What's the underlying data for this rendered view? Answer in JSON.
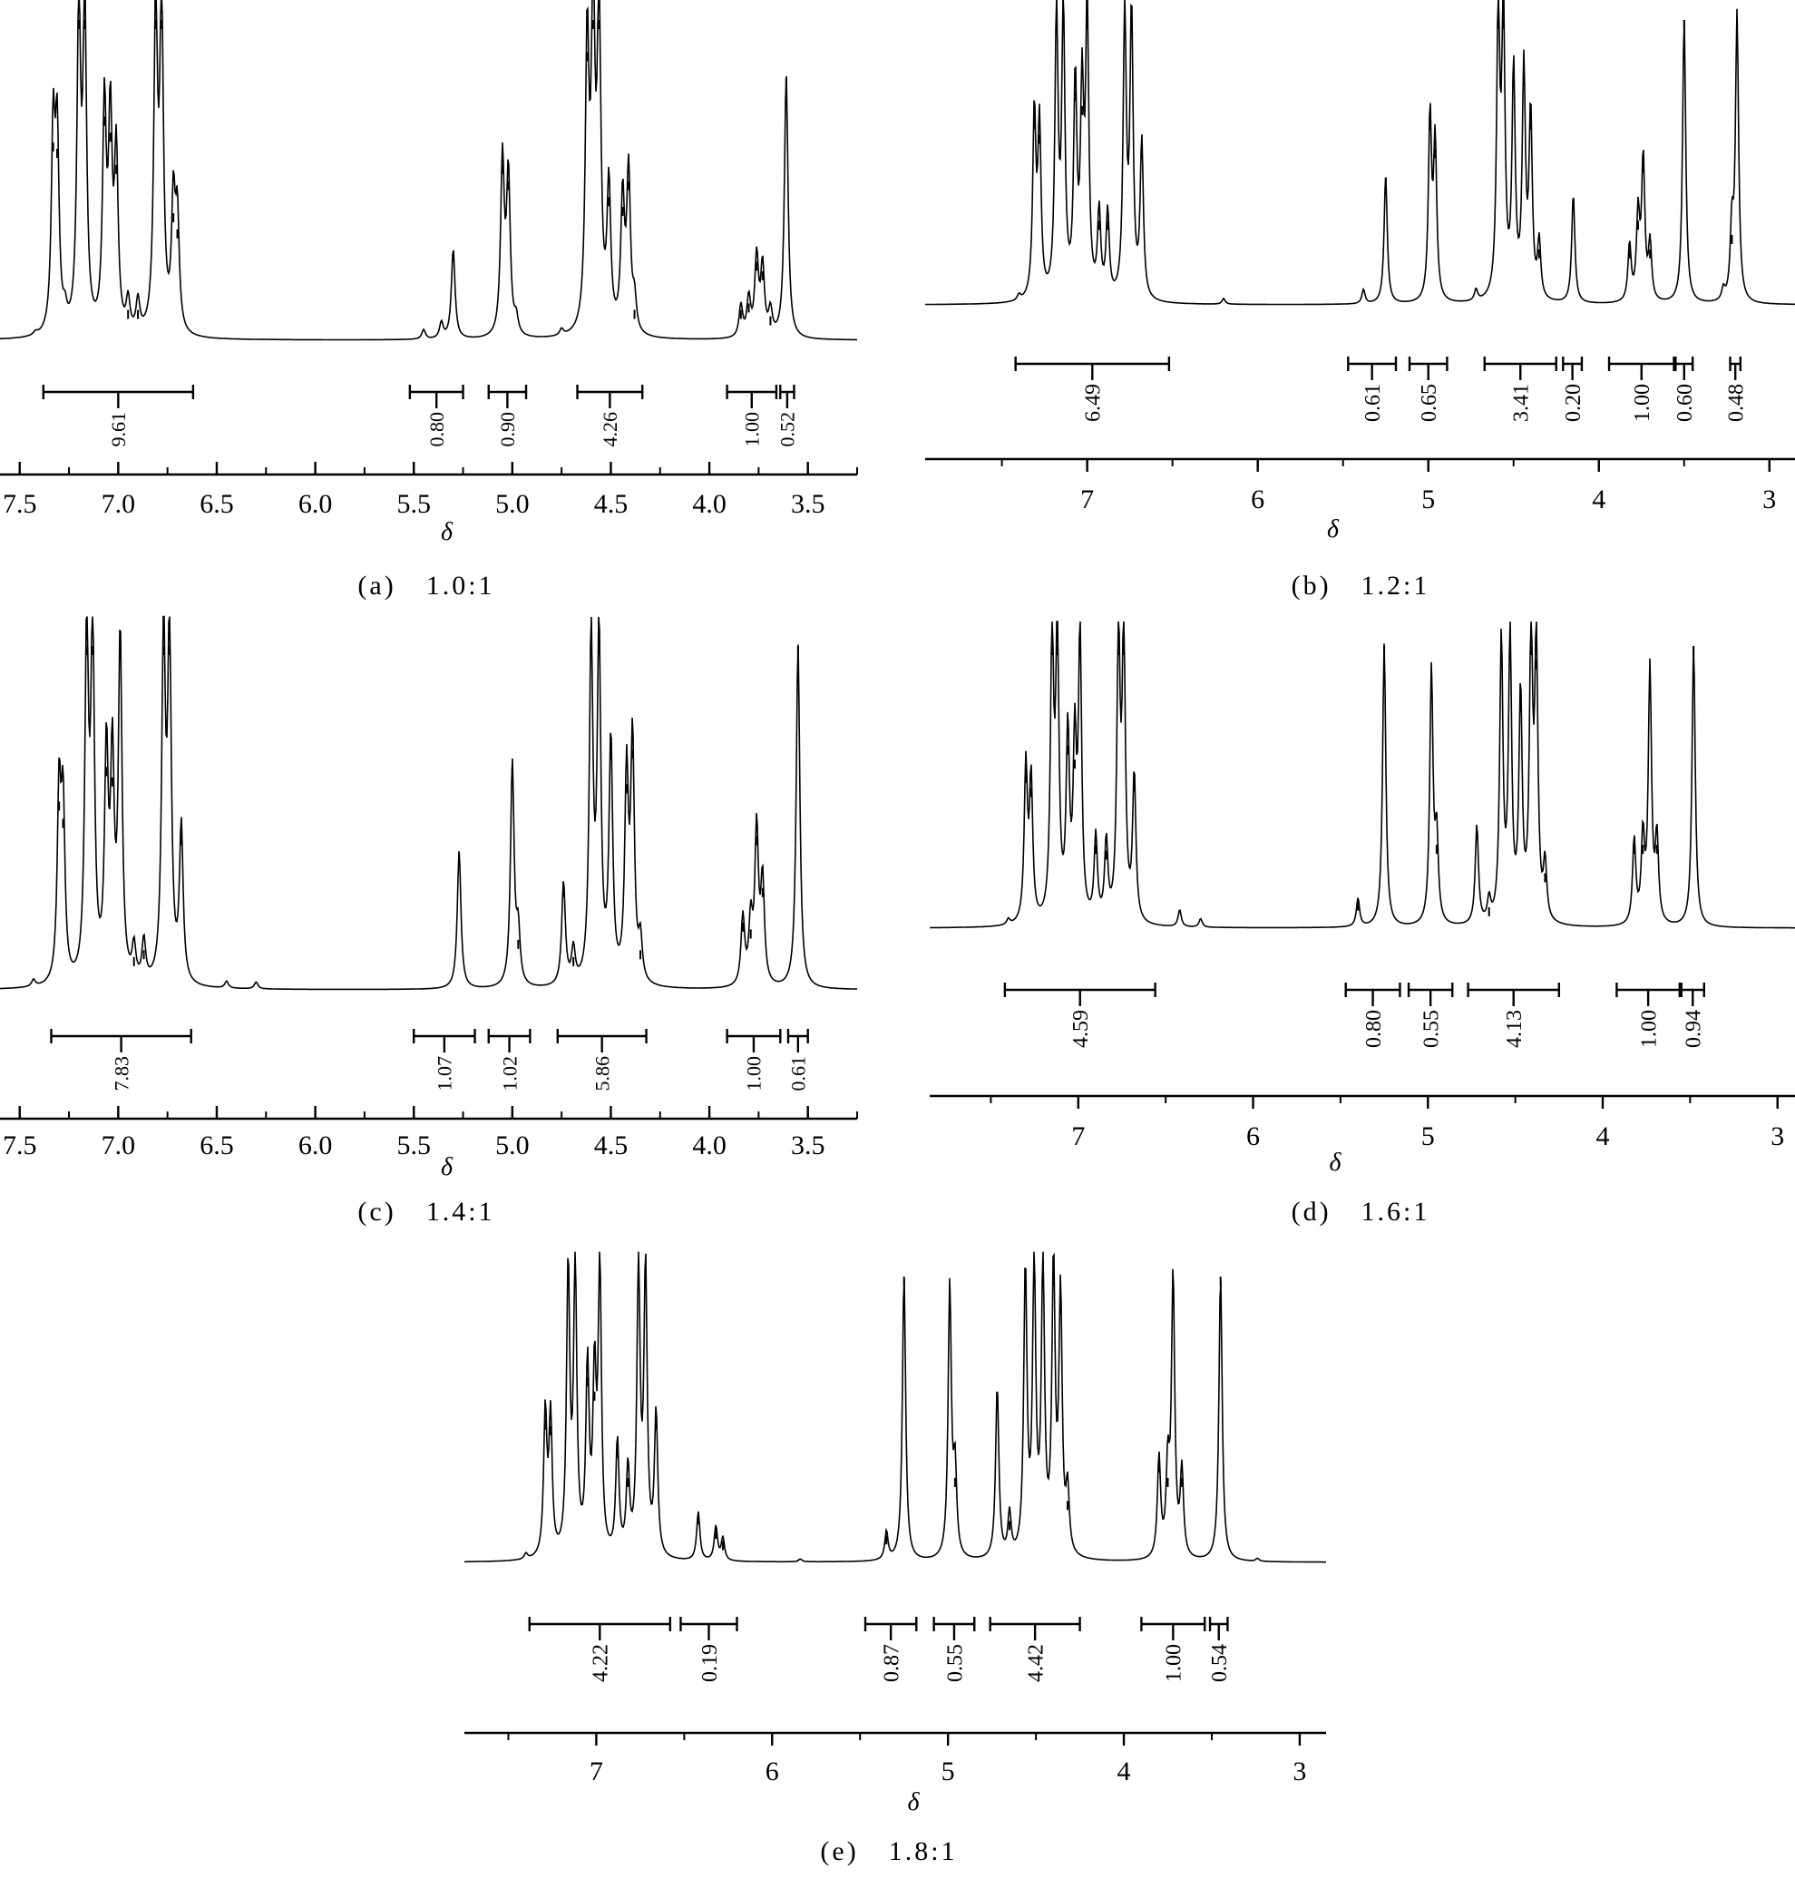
{
  "figure": {
    "panels_text": "NMR spectra panels (a)-(e)"
  },
  "chart_data": [
    {
      "type": "line",
      "id": "a",
      "caption": "(a)　1.0:1",
      "xlabel": "δ",
      "xlim": [
        7.6,
        3.25
      ],
      "reverse_x": true,
      "ticks": [
        7.5,
        7.0,
        6.5,
        6.0,
        5.5,
        5.0,
        4.5,
        4.0,
        3.5
      ],
      "tick_labels": [
        "7.5",
        "7.0",
        "6.5",
        "6.0",
        "5.5",
        "5.0",
        "4.5",
        "4.0",
        "3.5"
      ],
      "integrals": [
        {
          "from": 7.38,
          "to": 6.62,
          "value": "9.61"
        },
        {
          "from": 5.52,
          "to": 5.25,
          "value": "0.80"
        },
        {
          "from": 5.12,
          "to": 4.93,
          "value": "0.90"
        },
        {
          "from": 4.67,
          "to": 4.34,
          "value": "4.26"
        },
        {
          "from": 3.91,
          "to": 3.66,
          "value": "1.00"
        },
        {
          "from": 3.64,
          "to": 3.57,
          "value": "0.52"
        }
      ],
      "peaks": [
        {
          "x": 7.42,
          "h": 0.01
        },
        {
          "x": 7.33,
          "h": 0.62
        },
        {
          "x": 7.31,
          "h": 0.6
        },
        {
          "x": 7.27,
          "h": 0.05
        },
        {
          "x": 7.2,
          "h": 1.0
        },
        {
          "x": 7.17,
          "h": 1.0
        },
        {
          "x": 7.07,
          "h": 0.7
        },
        {
          "x": 7.04,
          "h": 0.65
        },
        {
          "x": 7.01,
          "h": 0.55
        },
        {
          "x": 6.95,
          "h": 0.1
        },
        {
          "x": 6.9,
          "h": 0.1
        },
        {
          "x": 6.81,
          "h": 1.0
        },
        {
          "x": 6.78,
          "h": 1.0
        },
        {
          "x": 6.72,
          "h": 0.4
        },
        {
          "x": 6.7,
          "h": 0.35
        },
        {
          "x": 5.45,
          "h": 0.03
        },
        {
          "x": 5.36,
          "h": 0.05
        },
        {
          "x": 5.3,
          "h": 0.28
        },
        {
          "x": 5.05,
          "h": 0.55
        },
        {
          "x": 5.02,
          "h": 0.5
        },
        {
          "x": 4.98,
          "h": 0.05
        },
        {
          "x": 4.75,
          "h": 0.02
        },
        {
          "x": 4.62,
          "h": 0.9
        },
        {
          "x": 4.59,
          "h": 1.0
        },
        {
          "x": 4.56,
          "h": 1.0
        },
        {
          "x": 4.51,
          "h": 0.45
        },
        {
          "x": 4.44,
          "h": 0.42
        },
        {
          "x": 4.41,
          "h": 0.5
        },
        {
          "x": 4.38,
          "h": 0.1
        },
        {
          "x": 3.84,
          "h": 0.1
        },
        {
          "x": 3.8,
          "h": 0.12
        },
        {
          "x": 3.76,
          "h": 0.25
        },
        {
          "x": 3.73,
          "h": 0.22
        },
        {
          "x": 3.69,
          "h": 0.08
        },
        {
          "x": 3.61,
          "h": 0.82
        }
      ]
    },
    {
      "type": "line",
      "id": "b",
      "caption": "(b)　1.2:1",
      "xlabel": "δ",
      "xlim": [
        7.95,
        2.85
      ],
      "reverse_x": true,
      "ticks": [
        7,
        6,
        5,
        4,
        3
      ],
      "tick_labels": [
        "7",
        "6",
        "5",
        "4",
        "3"
      ],
      "integrals": [
        {
          "from": 7.42,
          "to": 6.52,
          "value": "6.49"
        },
        {
          "from": 5.47,
          "to": 5.19,
          "value": "0.61"
        },
        {
          "from": 5.11,
          "to": 4.89,
          "value": "0.65"
        },
        {
          "from": 4.67,
          "to": 4.25,
          "value": "3.41"
        },
        {
          "from": 4.21,
          "to": 4.1,
          "value": "0.20"
        },
        {
          "from": 3.94,
          "to": 3.56,
          "value": "1.00"
        },
        {
          "from": 3.55,
          "to": 3.45,
          "value": "0.60"
        },
        {
          "from": 3.23,
          "to": 3.17,
          "value": "0.48"
        }
      ],
      "peaks": [
        {
          "x": 7.4,
          "h": 0.02
        },
        {
          "x": 7.31,
          "h": 0.65
        },
        {
          "x": 7.28,
          "h": 0.6
        },
        {
          "x": 7.18,
          "h": 1.0
        },
        {
          "x": 7.14,
          "h": 1.0
        },
        {
          "x": 7.07,
          "h": 0.75
        },
        {
          "x": 7.03,
          "h": 0.7
        },
        {
          "x": 7.0,
          "h": 1.0
        },
        {
          "x": 6.93,
          "h": 0.3
        },
        {
          "x": 6.88,
          "h": 0.3
        },
        {
          "x": 6.78,
          "h": 1.0
        },
        {
          "x": 6.74,
          "h": 1.0
        },
        {
          "x": 6.68,
          "h": 0.55
        },
        {
          "x": 6.2,
          "h": 0.02
        },
        {
          "x": 5.38,
          "h": 0.05
        },
        {
          "x": 5.25,
          "h": 0.45
        },
        {
          "x": 4.99,
          "h": 0.65
        },
        {
          "x": 4.96,
          "h": 0.55
        },
        {
          "x": 4.72,
          "h": 0.04
        },
        {
          "x": 4.59,
          "h": 1.0
        },
        {
          "x": 4.56,
          "h": 1.0
        },
        {
          "x": 4.5,
          "h": 0.8
        },
        {
          "x": 4.44,
          "h": 0.8
        },
        {
          "x": 4.4,
          "h": 0.65
        },
        {
          "x": 4.35,
          "h": 0.2
        },
        {
          "x": 4.15,
          "h": 0.38
        },
        {
          "x": 3.82,
          "h": 0.2
        },
        {
          "x": 3.77,
          "h": 0.3
        },
        {
          "x": 3.74,
          "h": 0.5
        },
        {
          "x": 3.7,
          "h": 0.2
        },
        {
          "x": 3.5,
          "h": 1.0
        },
        {
          "x": 3.27,
          "h": 0.04
        },
        {
          "x": 3.22,
          "h": 0.25
        },
        {
          "x": 3.19,
          "h": 1.0
        }
      ]
    },
    {
      "type": "line",
      "id": "c",
      "caption": "(c)　1.4:1",
      "xlabel": "δ",
      "xlim": [
        7.6,
        3.25
      ],
      "reverse_x": true,
      "ticks": [
        7.5,
        7.0,
        6.5,
        6.0,
        5.5,
        5.0,
        4.5,
        4.0,
        3.5
      ],
      "tick_labels": [
        "7.5",
        "7.0",
        "6.5",
        "6.0",
        "5.5",
        "5.0",
        "4.5",
        "4.0",
        "3.5"
      ],
      "integrals": [
        {
          "from": 7.34,
          "to": 6.63,
          "value": "7.83"
        },
        {
          "from": 5.5,
          "to": 5.19,
          "value": "1.07"
        },
        {
          "from": 5.12,
          "to": 4.91,
          "value": "1.02"
        },
        {
          "from": 4.77,
          "to": 4.32,
          "value": "5.86"
        },
        {
          "from": 3.91,
          "to": 3.64,
          "value": "1.00"
        },
        {
          "from": 3.6,
          "to": 3.5,
          "value": "0.61"
        }
      ],
      "peaks": [
        {
          "x": 7.43,
          "h": 0.02
        },
        {
          "x": 7.3,
          "h": 0.55
        },
        {
          "x": 7.28,
          "h": 0.5
        },
        {
          "x": 7.16,
          "h": 1.0
        },
        {
          "x": 7.13,
          "h": 1.0
        },
        {
          "x": 7.06,
          "h": 0.65
        },
        {
          "x": 7.03,
          "h": 0.62
        },
        {
          "x": 6.99,
          "h": 1.0
        },
        {
          "x": 6.92,
          "h": 0.1
        },
        {
          "x": 6.87,
          "h": 0.12
        },
        {
          "x": 6.77,
          "h": 1.0
        },
        {
          "x": 6.74,
          "h": 1.0
        },
        {
          "x": 6.68,
          "h": 0.45
        },
        {
          "x": 6.45,
          "h": 0.02
        },
        {
          "x": 6.3,
          "h": 0.02
        },
        {
          "x": 5.27,
          "h": 0.4
        },
        {
          "x": 5.0,
          "h": 0.65
        },
        {
          "x": 4.97,
          "h": 0.15
        },
        {
          "x": 4.74,
          "h": 0.3
        },
        {
          "x": 4.69,
          "h": 0.1
        },
        {
          "x": 4.6,
          "h": 1.0
        },
        {
          "x": 4.56,
          "h": 1.0
        },
        {
          "x": 4.5,
          "h": 0.7
        },
        {
          "x": 4.42,
          "h": 0.6
        },
        {
          "x": 4.39,
          "h": 0.7
        },
        {
          "x": 4.35,
          "h": 0.12
        },
        {
          "x": 3.83,
          "h": 0.2
        },
        {
          "x": 3.79,
          "h": 0.18
        },
        {
          "x": 3.76,
          "h": 0.45
        },
        {
          "x": 3.73,
          "h": 0.3
        },
        {
          "x": 3.55,
          "h": 1.0
        }
      ]
    },
    {
      "type": "line",
      "id": "d",
      "caption": "(d)　1.6:1",
      "xlabel": "δ",
      "xlim": [
        7.85,
        2.9
      ],
      "reverse_x": true,
      "ticks": [
        7,
        6,
        5,
        4,
        3
      ],
      "tick_labels": [
        "7",
        "6",
        "5",
        "4",
        "3"
      ],
      "integrals": [
        {
          "from": 7.42,
          "to": 6.56,
          "value": "4.59"
        },
        {
          "from": 5.47,
          "to": 5.16,
          "value": "0.80"
        },
        {
          "from": 5.11,
          "to": 4.86,
          "value": "0.55"
        },
        {
          "from": 4.77,
          "to": 4.25,
          "value": "4.13"
        },
        {
          "from": 3.92,
          "to": 3.56,
          "value": "1.00"
        },
        {
          "from": 3.55,
          "to": 3.42,
          "value": "0.94"
        }
      ],
      "peaks": [
        {
          "x": 7.4,
          "h": 0.02
        },
        {
          "x": 7.3,
          "h": 0.55
        },
        {
          "x": 7.27,
          "h": 0.5
        },
        {
          "x": 7.15,
          "h": 1.0
        },
        {
          "x": 7.12,
          "h": 1.0
        },
        {
          "x": 7.06,
          "h": 0.65
        },
        {
          "x": 7.02,
          "h": 0.6
        },
        {
          "x": 6.99,
          "h": 1.0
        },
        {
          "x": 6.9,
          "h": 0.3
        },
        {
          "x": 6.84,
          "h": 0.28
        },
        {
          "x": 6.77,
          "h": 1.0
        },
        {
          "x": 6.74,
          "h": 1.0
        },
        {
          "x": 6.68,
          "h": 0.52
        },
        {
          "x": 6.42,
          "h": 0.06
        },
        {
          "x": 6.3,
          "h": 0.03
        },
        {
          "x": 5.4,
          "h": 0.1
        },
        {
          "x": 5.25,
          "h": 1.0
        },
        {
          "x": 4.98,
          "h": 0.9
        },
        {
          "x": 4.95,
          "h": 0.3
        },
        {
          "x": 4.72,
          "h": 0.35
        },
        {
          "x": 4.65,
          "h": 0.08
        },
        {
          "x": 4.58,
          "h": 1.0
        },
        {
          "x": 4.53,
          "h": 1.0
        },
        {
          "x": 4.47,
          "h": 0.8
        },
        {
          "x": 4.41,
          "h": 1.0
        },
        {
          "x": 4.38,
          "h": 0.95
        },
        {
          "x": 4.33,
          "h": 0.2
        },
        {
          "x": 3.82,
          "h": 0.3
        },
        {
          "x": 3.77,
          "h": 0.3
        },
        {
          "x": 3.73,
          "h": 0.9
        },
        {
          "x": 3.69,
          "h": 0.3
        },
        {
          "x": 3.48,
          "h": 1.0
        }
      ]
    },
    {
      "type": "line",
      "id": "e",
      "caption": "(e)　1.8:1",
      "xlabel": "δ",
      "xlim": [
        7.75,
        2.85
      ],
      "reverse_x": true,
      "ticks": [
        7,
        6,
        5,
        4,
        3
      ],
      "tick_labels": [
        "7",
        "6",
        "5",
        "4",
        "3"
      ],
      "integrals": [
        {
          "from": 7.38,
          "to": 6.58,
          "value": "4.22"
        },
        {
          "from": 6.52,
          "to": 6.2,
          "value": "0.19"
        },
        {
          "from": 5.47,
          "to": 5.18,
          "value": "0.87"
        },
        {
          "from": 5.08,
          "to": 4.85,
          "value": "0.55"
        },
        {
          "from": 4.76,
          "to": 4.25,
          "value": "4.42"
        },
        {
          "from": 3.9,
          "to": 3.54,
          "value": "1.00"
        },
        {
          "from": 3.51,
          "to": 3.41,
          "value": "0.54"
        }
      ],
      "peaks": [
        {
          "x": 7.4,
          "h": 0.02
        },
        {
          "x": 7.29,
          "h": 0.5
        },
        {
          "x": 7.26,
          "h": 0.48
        },
        {
          "x": 7.16,
          "h": 1.0
        },
        {
          "x": 7.12,
          "h": 1.0
        },
        {
          "x": 7.05,
          "h": 0.65
        },
        {
          "x": 7.01,
          "h": 0.6
        },
        {
          "x": 6.98,
          "h": 1.0
        },
        {
          "x": 6.88,
          "h": 0.4
        },
        {
          "x": 6.82,
          "h": 0.3
        },
        {
          "x": 6.76,
          "h": 1.0
        },
        {
          "x": 6.72,
          "h": 1.0
        },
        {
          "x": 6.66,
          "h": 0.5
        },
        {
          "x": 6.42,
          "h": 0.17
        },
        {
          "x": 6.32,
          "h": 0.12
        },
        {
          "x": 6.28,
          "h": 0.08
        },
        {
          "x": 5.84,
          "h": 0.01
        },
        {
          "x": 5.35,
          "h": 0.1
        },
        {
          "x": 5.25,
          "h": 1.0
        },
        {
          "x": 4.99,
          "h": 0.95
        },
        {
          "x": 4.96,
          "h": 0.3
        },
        {
          "x": 4.72,
          "h": 0.6
        },
        {
          "x": 4.65,
          "h": 0.15
        },
        {
          "x": 4.56,
          "h": 1.0
        },
        {
          "x": 4.51,
          "h": 1.0
        },
        {
          "x": 4.46,
          "h": 1.0
        },
        {
          "x": 4.4,
          "h": 1.0
        },
        {
          "x": 4.36,
          "h": 0.9
        },
        {
          "x": 4.32,
          "h": 0.22
        },
        {
          "x": 3.8,
          "h": 0.35
        },
        {
          "x": 3.75,
          "h": 0.3
        },
        {
          "x": 3.72,
          "h": 0.98
        },
        {
          "x": 3.67,
          "h": 0.3
        },
        {
          "x": 3.45,
          "h": 1.0
        },
        {
          "x": 3.24,
          "h": 0.01
        }
      ]
    }
  ]
}
